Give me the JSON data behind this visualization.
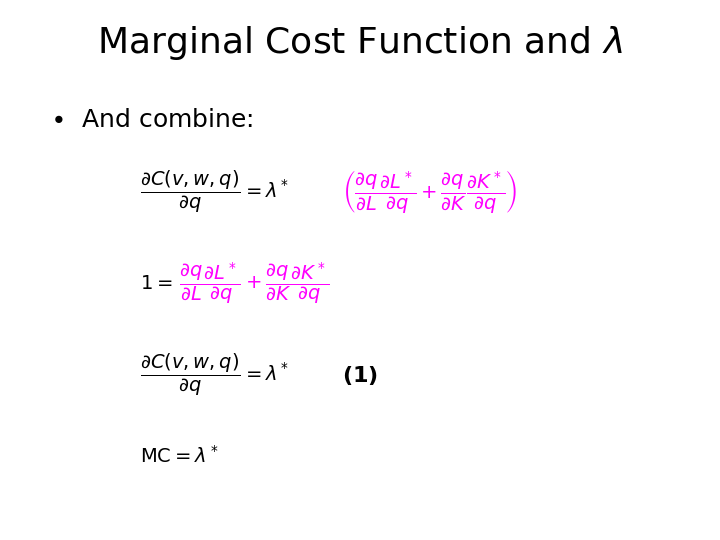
{
  "title": "Marginal Cost Function and $\\lambda$",
  "title_fontsize": 26,
  "title_color": "#000000",
  "bullet_text": "And combine:",
  "bullet_fontsize": 18,
  "bullet_color": "#000000",
  "magenta_color": "#FF00FF",
  "black_color": "#000000",
  "bg_color": "#FFFFFF",
  "figsize": [
    7.2,
    5.4
  ],
  "dpi": 100
}
